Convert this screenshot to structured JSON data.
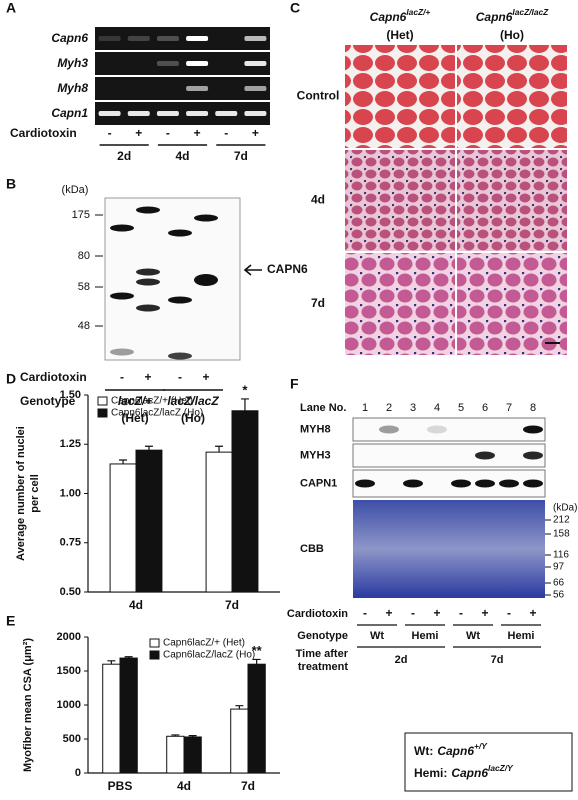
{
  "panels": {
    "A": {
      "label": "A",
      "genes": [
        "Capn6",
        "Myh3",
        "Myh8",
        "Capn1"
      ],
      "treatment_label": "Cardiotoxin",
      "signs": [
        "-",
        "+",
        "-",
        "+",
        "-",
        "+"
      ],
      "timepoints": [
        "2d",
        "4d",
        "7d"
      ]
    },
    "B": {
      "label": "B",
      "unit": "(kDa)",
      "markers": [
        175,
        80,
        58,
        48
      ],
      "arrow_label": "CAPN6",
      "treatment_label": "Cardiotoxin",
      "signs": [
        "-",
        "+",
        "-",
        "+"
      ],
      "genotype_label": "Genotype",
      "genotypes": [
        {
          "allele": "lacZ/+",
          "note": "(Het)"
        },
        {
          "allele": "lacZ/lacZ",
          "note": "(Ho)"
        }
      ]
    },
    "C": {
      "label": "C",
      "columns": [
        {
          "gene": "Capn6",
          "allele": "lacZ/+",
          "note": "(Het)"
        },
        {
          "gene": "Capn6",
          "allele": "lacZ/lacZ",
          "note": "(Ho)"
        }
      ],
      "rows": [
        "Control",
        "4d",
        "7d"
      ]
    },
    "F": {
      "label": "F",
      "lane_label": "Lane No.",
      "lanes": [
        1,
        2,
        3,
        4,
        5,
        6,
        7,
        8
      ],
      "blots": [
        "MYH8",
        "MYH3",
        "CAPN1",
        "CBB"
      ],
      "unit": "(kDa)",
      "markers": [
        212,
        158,
        116,
        97,
        66,
        56
      ],
      "treatment_label": "Cardiotoxin",
      "signs": [
        "-",
        "+",
        "-",
        "+",
        "-",
        "+",
        "-",
        "+"
      ],
      "genotype_label": "Genotype",
      "genotypes": [
        "Wt",
        "Hemi",
        "Wt",
        "Hemi"
      ],
      "time_label": [
        "Time after",
        "treatment"
      ],
      "times": [
        "2d",
        "7d"
      ],
      "key": [
        {
          "abbr": "Wt:",
          "gene": "Capn6",
          "allele": "+/Y"
        },
        {
          "abbr": "Hemi:",
          "gene": "Capn6",
          "allele": "lacZ/Y"
        }
      ]
    }
  },
  "chart_data": [
    {
      "type": "bar",
      "panel": "D",
      "ylabel": [
        "Average number of nuclei",
        "per cell"
      ],
      "categories": [
        "4d",
        "7d"
      ],
      "series": [
        {
          "name": "Capn6lacZ/+ (Het)",
          "color": "#ffffff",
          "values": [
            1.15,
            1.21
          ],
          "errors": [
            0.02,
            0.03
          ]
        },
        {
          "name": "Capn6lacZ/lacZ (Ho)",
          "color": "#111111",
          "values": [
            1.22,
            1.42
          ],
          "errors": [
            0.02,
            0.06
          ]
        }
      ],
      "annotations": [
        null,
        "*"
      ],
      "ylim": [
        0.5,
        1.5
      ],
      "yticks": [
        {
          "value": 0.5,
          "label": "0.50"
        },
        {
          "value": 0.75,
          "label": "0.75"
        },
        {
          "value": 1,
          "label": "1.00"
        },
        {
          "value": 1.25,
          "label": "1.25"
        },
        {
          "value": 1.5,
          "label": "1.50"
        }
      ]
    },
    {
      "type": "bar",
      "panel": "E",
      "ylabel": [
        "Myofiber mean CSA (μm²)"
      ],
      "categories": [
        "PBS",
        "4d",
        "7d"
      ],
      "series": [
        {
          "name": "Capn6lacZ/+ (Het)",
          "color": "#ffffff",
          "values": [
            1600,
            540,
            940
          ],
          "errors": [
            50,
            20,
            50
          ]
        },
        {
          "name": "Capn6lacZ/lacZ (Ho)",
          "color": "#111111",
          "values": [
            1690,
            530,
            1600
          ],
          "errors": [
            20,
            20,
            70
          ]
        }
      ],
      "annotations": [
        null,
        null,
        "**"
      ],
      "ylim": [
        0,
        2000
      ],
      "yticks": [
        0,
        500,
        1000,
        1500,
        2000
      ]
    }
  ]
}
